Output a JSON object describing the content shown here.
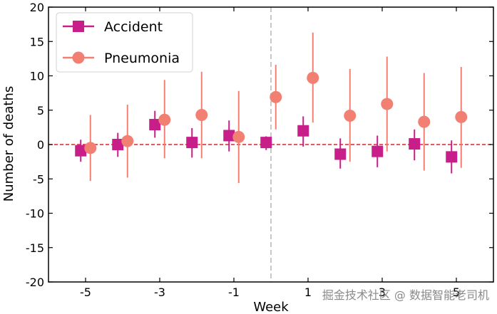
{
  "chart_data": {
    "type": "scatter",
    "x_ticks": [
      -5,
      -3,
      -1,
      1,
      3,
      5
    ],
    "y_ticks": [
      -20,
      -15,
      -10,
      -5,
      0,
      5,
      10,
      15,
      20
    ],
    "xlabel": "Week",
    "ylabel": "Number of deaths",
    "ylim": [
      -20,
      20
    ],
    "xlim": [
      -6,
      6
    ],
    "grid": false,
    "legend_position": "top-left",
    "reference_lines": {
      "horizontal_y": 0,
      "vertical_x": 0
    },
    "series": [
      {
        "name": "Accident",
        "marker": "square",
        "color": "#c71e8a",
        "points": [
          {
            "x": -5,
            "y": -0.9,
            "low": -2.5,
            "high": 0.7
          },
          {
            "x": -4,
            "y": 0.0,
            "low": -1.8,
            "high": 1.7
          },
          {
            "x": -3,
            "y": 2.9,
            "low": 1.0,
            "high": 4.9
          },
          {
            "x": -2,
            "y": 0.3,
            "low": -1.9,
            "high": 2.4
          },
          {
            "x": -1,
            "y": 1.3,
            "low": -1.0,
            "high": 3.5
          },
          {
            "x": 0,
            "y": 0.3,
            "low": -0.8,
            "high": 1.2
          },
          {
            "x": 1,
            "y": 2.0,
            "low": -0.3,
            "high": 4.1
          },
          {
            "x": 2,
            "y": -1.4,
            "low": -3.5,
            "high": 0.9
          },
          {
            "x": 3,
            "y": -1.0,
            "low": -3.3,
            "high": 1.3
          },
          {
            "x": 4,
            "y": 0.1,
            "low": -2.3,
            "high": 2.2
          },
          {
            "x": 5,
            "y": -1.8,
            "low": -4.2,
            "high": 0.6
          }
        ]
      },
      {
        "name": "Pneumonia",
        "marker": "circle",
        "color": "#f28072",
        "points": [
          {
            "x": -5,
            "y": -0.5,
            "low": -5.3,
            "high": 4.3
          },
          {
            "x": -4,
            "y": 0.5,
            "low": -4.8,
            "high": 5.8
          },
          {
            "x": -3,
            "y": 3.6,
            "low": -2.0,
            "high": 9.4
          },
          {
            "x": -2,
            "y": 4.3,
            "low": -2.0,
            "high": 10.6
          },
          {
            "x": -1,
            "y": 1.1,
            "low": -5.6,
            "high": 7.8
          },
          {
            "x": 0,
            "y": 6.9,
            "low": 2.2,
            "high": 11.6
          },
          {
            "x": 1,
            "y": 9.7,
            "low": 3.2,
            "high": 16.3
          },
          {
            "x": 2,
            "y": 4.2,
            "low": -2.5,
            "high": 11.0
          },
          {
            "x": 3,
            "y": 5.9,
            "low": -1.0,
            "high": 12.8
          },
          {
            "x": 4,
            "y": 3.3,
            "low": -3.8,
            "high": 10.4
          },
          {
            "x": 5,
            "y": 4.0,
            "low": -3.4,
            "high": 11.3
          }
        ]
      }
    ],
    "annotations": [
      "掘金技术社区 @ 数据智能老司机"
    ]
  }
}
